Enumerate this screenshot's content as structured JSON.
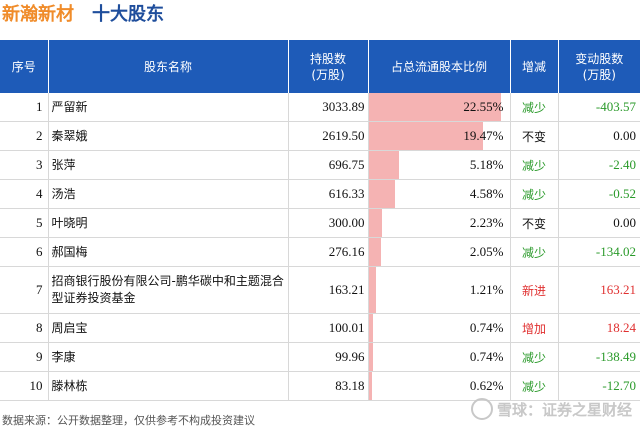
{
  "header": {
    "company": "新瀚新材",
    "subtitle": "十大股东"
  },
  "columns": [
    "序号",
    "股东名称",
    "持股数\n(万股)",
    "占总流通股本比例",
    "增减",
    "变动股数\n(万股)"
  ],
  "rows": [
    {
      "idx": "1",
      "name": "严留新",
      "shares": "3033.89",
      "pct": "22.55%",
      "pct_value": 22.55,
      "change": "减少",
      "change_kind": "down",
      "delta": "-403.57"
    },
    {
      "idx": "2",
      "name": "秦翠娥",
      "shares": "2619.50",
      "pct": "19.47%",
      "pct_value": 19.47,
      "change": "不变",
      "change_kind": "same",
      "delta": "0.00"
    },
    {
      "idx": "3",
      "name": "张萍",
      "shares": "696.75",
      "pct": "5.18%",
      "pct_value": 5.18,
      "change": "减少",
      "change_kind": "down",
      "delta": "-2.40"
    },
    {
      "idx": "4",
      "name": "汤浩",
      "shares": "616.33",
      "pct": "4.58%",
      "pct_value": 4.58,
      "change": "减少",
      "change_kind": "down",
      "delta": "-0.52"
    },
    {
      "idx": "5",
      "name": "叶晓明",
      "shares": "300.00",
      "pct": "2.23%",
      "pct_value": 2.23,
      "change": "不变",
      "change_kind": "same",
      "delta": "0.00"
    },
    {
      "idx": "6",
      "name": "郝国梅",
      "shares": "276.16",
      "pct": "2.05%",
      "pct_value": 2.05,
      "change": "减少",
      "change_kind": "down",
      "delta": "-134.02"
    },
    {
      "idx": "7",
      "name": "招商银行股份有限公司-鹏华碳中和主题混合型证券投资基金",
      "shares": "163.21",
      "pct": "1.21%",
      "pct_value": 1.21,
      "change": "新进",
      "change_kind": "up",
      "delta": "163.21"
    },
    {
      "idx": "8",
      "name": "周启宝",
      "shares": "100.01",
      "pct": "0.74%",
      "pct_value": 0.74,
      "change": "增加",
      "change_kind": "up",
      "delta": "18.24"
    },
    {
      "idx": "9",
      "name": "李康",
      "shares": "99.96",
      "pct": "0.74%",
      "pct_value": 0.74,
      "change": "减少",
      "change_kind": "down",
      "delta": "-138.49"
    },
    {
      "idx": "10",
      "name": "滕林栋",
      "shares": "83.18",
      "pct": "0.62%",
      "pct_value": 0.62,
      "change": "减少",
      "change_kind": "down",
      "delta": "-12.70"
    }
  ],
  "footer": "数据来源：公开数据整理，仅供参考不构成投资建议",
  "watermark": "雪球：证券之星财经",
  "colors": {
    "header_bg": "#1e5bb8",
    "bar": "#f5b3b3",
    "down": "#2a9a2a",
    "up": "#e03030",
    "company": "#f08c2a"
  }
}
